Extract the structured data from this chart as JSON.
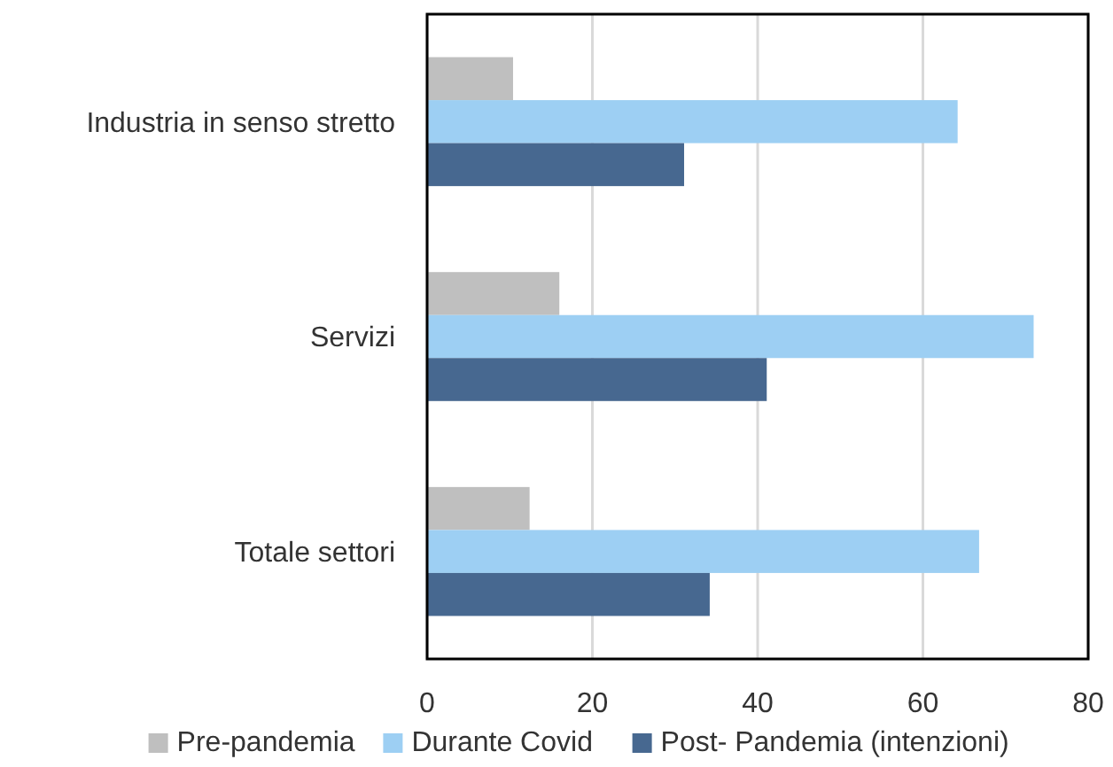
{
  "chart_data": {
    "type": "bar",
    "orientation": "horizontal",
    "categories": [
      "Industria in senso stretto",
      "Servizi",
      "Totale settori"
    ],
    "series": [
      {
        "name": "Pre-pandemia",
        "color": "#bfbfbf",
        "values": [
          10.4,
          16.0,
          12.4
        ]
      },
      {
        "name": "Durante Covid",
        "color": "#9dcff3",
        "values": [
          64.2,
          73.4,
          66.8
        ]
      },
      {
        "name": "Post- Pandemia (intenzioni)",
        "color": "#476890",
        "values": [
          31.1,
          41.1,
          34.2
        ]
      }
    ],
    "xlim": [
      0,
      80
    ],
    "xticks": [
      0,
      20,
      40,
      60,
      80
    ],
    "grid": "x",
    "legend": "bottom"
  }
}
